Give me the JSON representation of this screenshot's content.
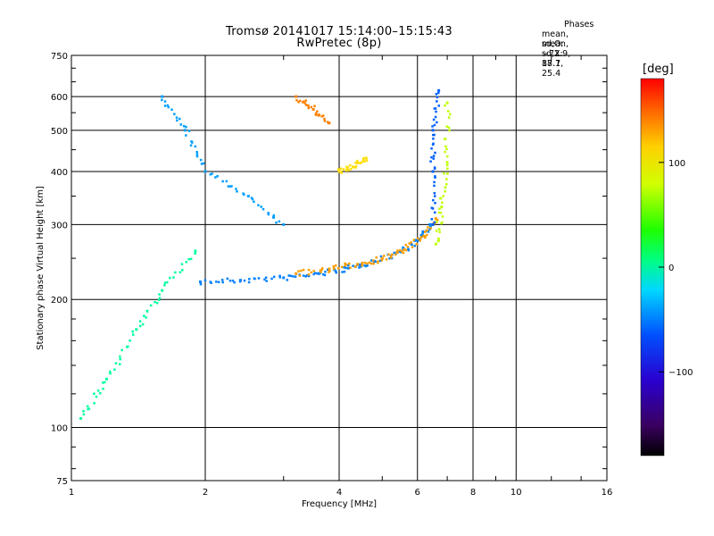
{
  "header": {
    "title_line1": "Tromsø 20141017 15:14:00–15:15:43",
    "title_line2": "RwPretec (8p)",
    "phase_heading": "Phases",
    "phase_line1": "mean, sd,O: −72.9, 18.1",
    "phase_line2": "mean, sd,X:  87.7, 25.4"
  },
  "colorbar": {
    "unit": "[deg]",
    "ticks": [
      "100",
      "0",
      "−100"
    ],
    "tick_values": [
      100,
      0,
      -100
    ],
    "range": [
      -180,
      180
    ]
  },
  "chart_data": {
    "type": "scatter",
    "xlabel": "Frequency [MHz]",
    "ylabel": "Stationary phase Virtual Height [km]",
    "xscale": "log",
    "yscale": "log",
    "xlim": [
      1,
      16
    ],
    "ylim": [
      75,
      750
    ],
    "x_ticks": [
      1,
      2,
      4,
      6,
      8,
      10,
      16
    ],
    "x_tick_labels": [
      "1",
      "2",
      "4",
      "6",
      "8",
      "10",
      "16"
    ],
    "y_ticks": [
      75,
      100,
      200,
      300,
      400,
      500,
      600,
      750
    ],
    "y_tick_labels": [
      "75",
      "100",
      "200",
      "300",
      "400",
      "500",
      "600",
      "750"
    ],
    "grid": true,
    "color_scale": "rainbow",
    "series": [
      {
        "phase": -100,
        "x": [
          1.95,
          2.4,
          3.0,
          3.6,
          4.2,
          4.8,
          5.4,
          6.0,
          6.4
        ],
        "y": [
          220,
          222,
          225,
          230,
          237,
          246,
          258,
          275,
          300
        ]
      },
      {
        "phase": 130,
        "x": [
          3.2,
          3.8,
          4.4,
          5.0,
          5.6,
          6.2,
          6.6
        ],
        "y": [
          230,
          236,
          242,
          250,
          262,
          282,
          310
        ]
      },
      {
        "phase": 80,
        "x": [
          6.6,
          6.8,
          7.0,
          7.0
        ],
        "y": [
          270,
          330,
          420,
          580
        ]
      },
      {
        "phase": -110,
        "x": [
          6.5,
          6.5,
          6.5,
          6.7
        ],
        "y": [
          300,
          400,
          500,
          620
        ]
      },
      {
        "phase": -90,
        "x": [
          1.6,
          1.8,
          2.0,
          2.5,
          3.0
        ],
        "y": [
          600,
          500,
          400,
          350,
          300
        ]
      },
      {
        "phase": -30,
        "x": [
          1.05,
          1.2,
          1.4,
          1.6,
          1.9
        ],
        "y": [
          105,
          130,
          170,
          210,
          260
        ]
      },
      {
        "phase": 140,
        "x": [
          3.2,
          3.5,
          3.8
        ],
        "y": [
          600,
          560,
          520
        ]
      },
      {
        "phase": 110,
        "x": [
          4.0,
          4.3,
          4.6
        ],
        "y": [
          400,
          410,
          430
        ]
      }
    ]
  }
}
